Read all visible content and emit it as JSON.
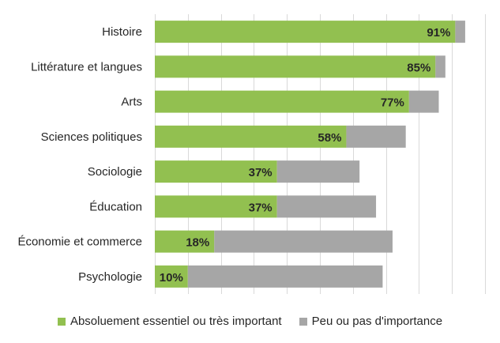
{
  "chart_data": {
    "type": "bar",
    "orientation": "horizontal",
    "stacked": true,
    "categories": [
      "Histoire",
      "Littérature et langues",
      "Arts",
      "Sciences politiques",
      "Sociologie",
      "Éducation",
      "Économie et commerce",
      "Psychologie"
    ],
    "series": [
      {
        "name": "Absoluement essentiel ou très important",
        "color": "#92c050",
        "values": [
          91,
          85,
          77,
          58,
          37,
          37,
          18,
          10
        ],
        "labels": [
          "91%",
          "85%",
          "77%",
          "58%",
          "37%",
          "37%",
          "18%",
          "10%"
        ]
      },
      {
        "name": "Peu ou pas d'importance",
        "color": "#a6a6a6",
        "values": [
          3,
          3,
          9,
          18,
          25,
          30,
          54,
          59
        ]
      }
    ],
    "xlim": [
      0,
      100
    ],
    "grid": true,
    "legend_position": "bottom"
  }
}
